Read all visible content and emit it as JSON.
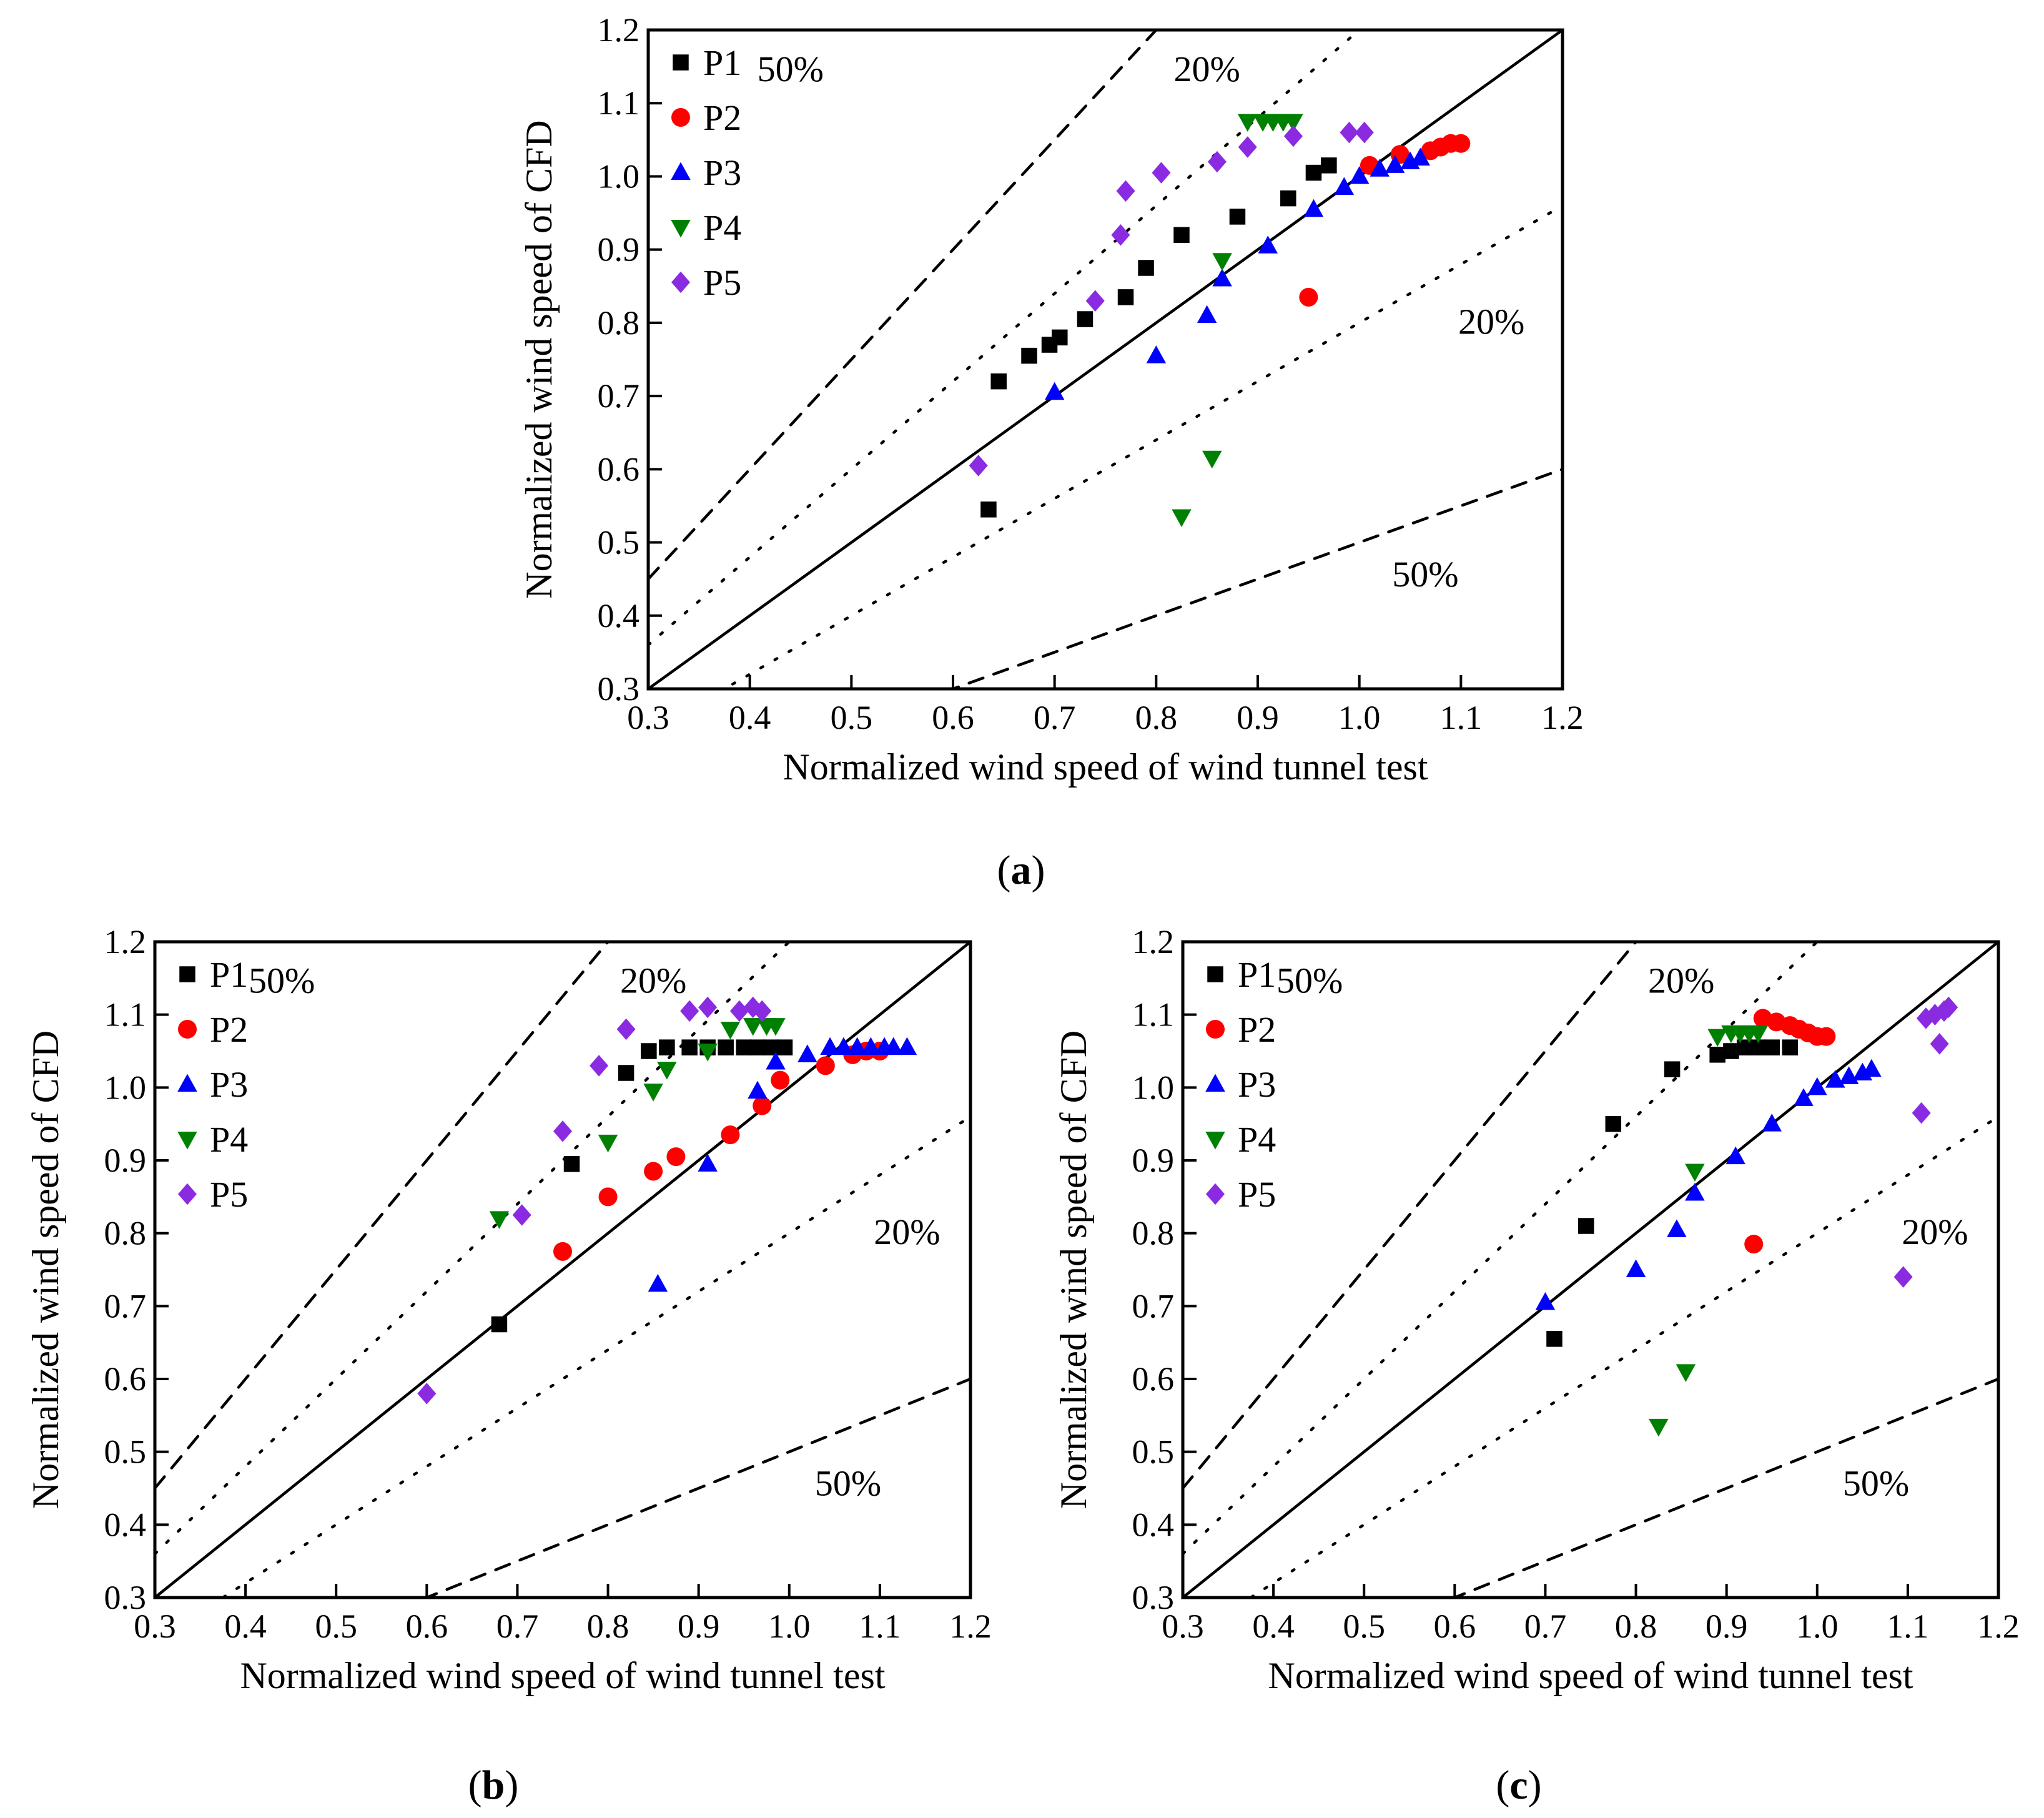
{
  "chart_data": [
    {
      "type": "scatter",
      "panel_label": "a",
      "xlabel": "Normalized wind speed of wind tunnel test",
      "ylabel": "Normalized wind speed of CFD",
      "xlim": [
        0.3,
        1.2
      ],
      "ylim": [
        0.3,
        1.2
      ],
      "xticks": [
        "0.3",
        "0.4",
        "0.5",
        "0.6",
        "0.7",
        "0.8",
        "0.9",
        "1.0",
        "1.1",
        "1.2"
      ],
      "yticks": [
        "0.3",
        "0.4",
        "0.5",
        "0.6",
        "0.7",
        "0.8",
        "0.9",
        "1.0",
        "1.1",
        "1.2"
      ],
      "grid": false,
      "legend_position": "top-left",
      "reference_labels": {
        "upper_50": "50%",
        "upper_20": "20%",
        "lower_20": "20%",
        "lower_50": "50%"
      },
      "series": [
        {
          "name": "P1",
          "marker": "square",
          "color": "#000000",
          "points": [
            [
              0.635,
              0.545
            ],
            [
              0.645,
              0.72
            ],
            [
              0.675,
              0.755
            ],
            [
              0.695,
              0.77
            ],
            [
              0.705,
              0.78
            ],
            [
              0.73,
              0.805
            ],
            [
              0.77,
              0.835
            ],
            [
              0.79,
              0.875
            ],
            [
              0.825,
              0.92
            ],
            [
              0.88,
              0.945
            ],
            [
              0.93,
              0.97
            ],
            [
              0.955,
              1.005
            ],
            [
              0.97,
              1.015
            ]
          ]
        },
        {
          "name": "P2",
          "marker": "circle",
          "color": "#ff0000",
          "points": [
            [
              0.95,
              0.835
            ],
            [
              1.01,
              1.015
            ],
            [
              1.04,
              1.03
            ],
            [
              1.07,
              1.035
            ],
            [
              1.08,
              1.04
            ],
            [
              1.09,
              1.045
            ],
            [
              1.1,
              1.045
            ]
          ]
        },
        {
          "name": "P3",
          "marker": "triangle-up",
          "color": "#0000ff",
          "points": [
            [
              0.7,
              0.705
            ],
            [
              0.8,
              0.755
            ],
            [
              0.85,
              0.81
            ],
            [
              0.865,
              0.86
            ],
            [
              0.91,
              0.905
            ],
            [
              0.955,
              0.955
            ],
            [
              0.985,
              0.985
            ],
            [
              1.0,
              1.0
            ],
            [
              1.02,
              1.01
            ],
            [
              1.035,
              1.015
            ],
            [
              1.05,
              1.02
            ],
            [
              1.06,
              1.025
            ]
          ]
        },
        {
          "name": "P4",
          "marker": "triangle-down",
          "color": "#008000",
          "points": [
            [
              0.825,
              0.535
            ],
            [
              0.855,
              0.615
            ],
            [
              0.865,
              0.885
            ],
            [
              0.89,
              1.075
            ],
            [
              0.905,
              1.075
            ],
            [
              0.915,
              1.075
            ],
            [
              0.925,
              1.075
            ],
            [
              0.935,
              1.075
            ]
          ]
        },
        {
          "name": "P5",
          "marker": "diamond",
          "color": "#8a2be2",
          "points": [
            [
              0.625,
              0.605
            ],
            [
              0.74,
              0.83
            ],
            [
              0.765,
              0.92
            ],
            [
              0.77,
              0.98
            ],
            [
              0.805,
              1.005
            ],
            [
              0.86,
              1.02
            ],
            [
              0.89,
              1.04
            ],
            [
              0.935,
              1.055
            ],
            [
              0.99,
              1.06
            ],
            [
              1.005,
              1.06
            ]
          ]
        }
      ]
    },
    {
      "type": "scatter",
      "panel_label": "b",
      "xlabel": "Normalized wind speed of wind tunnel test",
      "ylabel": "Normalized wind speed of CFD",
      "xlim": [
        0.3,
        1.2
      ],
      "ylim": [
        0.3,
        1.2
      ],
      "xticks": [
        "0.3",
        "0.4",
        "0.5",
        "0.6",
        "0.7",
        "0.8",
        "0.9",
        "1.0",
        "1.1",
        "1.2"
      ],
      "yticks": [
        "0.3",
        "0.4",
        "0.5",
        "0.6",
        "0.7",
        "0.8",
        "0.9",
        "1.0",
        "1.1",
        "1.2"
      ],
      "grid": false,
      "legend_position": "top-left",
      "reference_labels": {
        "upper_50": "50%",
        "upper_20": "20%",
        "lower_20": "20%",
        "lower_50": "50%"
      },
      "series": [
        {
          "name": "P1",
          "marker": "square",
          "color": "#000000",
          "points": [
            [
              0.68,
              0.675
            ],
            [
              0.76,
              0.895
            ],
            [
              0.82,
              1.02
            ],
            [
              0.845,
              1.05
            ],
            [
              0.865,
              1.055
            ],
            [
              0.89,
              1.055
            ],
            [
              0.91,
              1.055
            ],
            [
              0.93,
              1.055
            ],
            [
              0.95,
              1.055
            ],
            [
              0.965,
              1.055
            ],
            [
              0.98,
              1.055
            ],
            [
              0.995,
              1.055
            ]
          ]
        },
        {
          "name": "P2",
          "marker": "circle",
          "color": "#ff0000",
          "points": [
            [
              0.75,
              0.775
            ],
            [
              0.8,
              0.85
            ],
            [
              0.85,
              0.885
            ],
            [
              0.875,
              0.905
            ],
            [
              0.935,
              0.935
            ],
            [
              0.97,
              0.975
            ],
            [
              0.99,
              1.01
            ],
            [
              1.04,
              1.03
            ],
            [
              1.07,
              1.045
            ],
            [
              1.085,
              1.05
            ],
            [
              1.1,
              1.05
            ]
          ]
        },
        {
          "name": "P3",
          "marker": "triangle-up",
          "color": "#0000ff",
          "points": [
            [
              0.855,
              0.73
            ],
            [
              0.91,
              0.895
            ],
            [
              0.965,
              0.995
            ],
            [
              0.985,
              1.035
            ],
            [
              1.02,
              1.045
            ],
            [
              1.045,
              1.055
            ],
            [
              1.06,
              1.055
            ],
            [
              1.075,
              1.055
            ],
            [
              1.09,
              1.055
            ],
            [
              1.105,
              1.055
            ],
            [
              1.115,
              1.055
            ],
            [
              1.13,
              1.055
            ]
          ]
        },
        {
          "name": "P4",
          "marker": "triangle-down",
          "color": "#008000",
          "points": [
            [
              0.68,
              0.82
            ],
            [
              0.8,
              0.925
            ],
            [
              0.85,
              0.995
            ],
            [
              0.865,
              1.025
            ],
            [
              0.91,
              1.05
            ],
            [
              0.935,
              1.08
            ],
            [
              0.96,
              1.085
            ],
            [
              0.975,
              1.085
            ],
            [
              0.985,
              1.085
            ]
          ]
        },
        {
          "name": "P5",
          "marker": "diamond",
          "color": "#8a2be2",
          "points": [
            [
              0.6,
              0.58
            ],
            [
              0.705,
              0.825
            ],
            [
              0.75,
              0.94
            ],
            [
              0.79,
              1.03
            ],
            [
              0.82,
              1.08
            ],
            [
              0.89,
              1.105
            ],
            [
              0.91,
              1.11
            ],
            [
              0.945,
              1.105
            ],
            [
              0.96,
              1.11
            ],
            [
              0.97,
              1.105
            ]
          ]
        }
      ]
    },
    {
      "type": "scatter",
      "panel_label": "c",
      "xlabel": "Normalized wind speed of wind tunnel test",
      "ylabel": "Normalized wind speed of CFD",
      "xlim": [
        0.3,
        1.2
      ],
      "ylim": [
        0.3,
        1.2
      ],
      "xticks": [
        "0.3",
        "0.4",
        "0.5",
        "0.6",
        "0.7",
        "0.8",
        "0.9",
        "1.0",
        "1.1",
        "1.2"
      ],
      "yticks": [
        "0.3",
        "0.4",
        "0.5",
        "0.6",
        "0.7",
        "0.8",
        "0.9",
        "1.0",
        "1.1",
        "1.2"
      ],
      "grid": false,
      "legend_position": "top-left",
      "reference_labels": {
        "upper_50": "50%",
        "upper_20": "20%",
        "lower_20": "20%",
        "lower_50": "50%"
      },
      "series": [
        {
          "name": "P1",
          "marker": "square",
          "color": "#000000",
          "points": [
            [
              0.71,
              0.655
            ],
            [
              0.745,
              0.81
            ],
            [
              0.775,
              0.95
            ],
            [
              0.84,
              1.025
            ],
            [
              0.89,
              1.045
            ],
            [
              0.905,
              1.05
            ],
            [
              0.92,
              1.055
            ],
            [
              0.935,
              1.055
            ],
            [
              0.95,
              1.055
            ],
            [
              0.97,
              1.055
            ]
          ]
        },
        {
          "name": "P2",
          "marker": "circle",
          "color": "#ff0000",
          "points": [
            [
              0.93,
              0.785
            ],
            [
              0.94,
              1.095
            ],
            [
              0.955,
              1.09
            ],
            [
              0.97,
              1.085
            ],
            [
              0.98,
              1.08
            ],
            [
              0.99,
              1.075
            ],
            [
              1.0,
              1.07
            ],
            [
              1.01,
              1.07
            ]
          ]
        },
        {
          "name": "P3",
          "marker": "triangle-up",
          "color": "#0000ff",
          "points": [
            [
              0.7,
              0.705
            ],
            [
              0.8,
              0.75
            ],
            [
              0.845,
              0.805
            ],
            [
              0.865,
              0.855
            ],
            [
              0.91,
              0.905
            ],
            [
              0.95,
              0.95
            ],
            [
              0.985,
              0.985
            ],
            [
              1.0,
              1.0
            ],
            [
              1.02,
              1.01
            ],
            [
              1.035,
              1.015
            ],
            [
              1.05,
              1.02
            ],
            [
              1.06,
              1.025
            ]
          ]
        },
        {
          "name": "P4",
          "marker": "triangle-down",
          "color": "#008000",
          "points": [
            [
              0.825,
              0.535
            ],
            [
              0.855,
              0.61
            ],
            [
              0.865,
              0.885
            ],
            [
              0.89,
              1.07
            ],
            [
              0.905,
              1.075
            ],
            [
              0.915,
              1.075
            ],
            [
              0.925,
              1.075
            ],
            [
              0.935,
              1.075
            ]
          ]
        },
        {
          "name": "P5",
          "marker": "diamond",
          "color": "#8a2be2",
          "points": [
            [
              1.095,
              0.74
            ],
            [
              1.115,
              0.965
            ],
            [
              1.12,
              1.095
            ],
            [
              1.13,
              1.1
            ],
            [
              1.135,
              1.06
            ],
            [
              1.14,
              1.105
            ],
            [
              1.145,
              1.11
            ]
          ]
        }
      ]
    }
  ]
}
